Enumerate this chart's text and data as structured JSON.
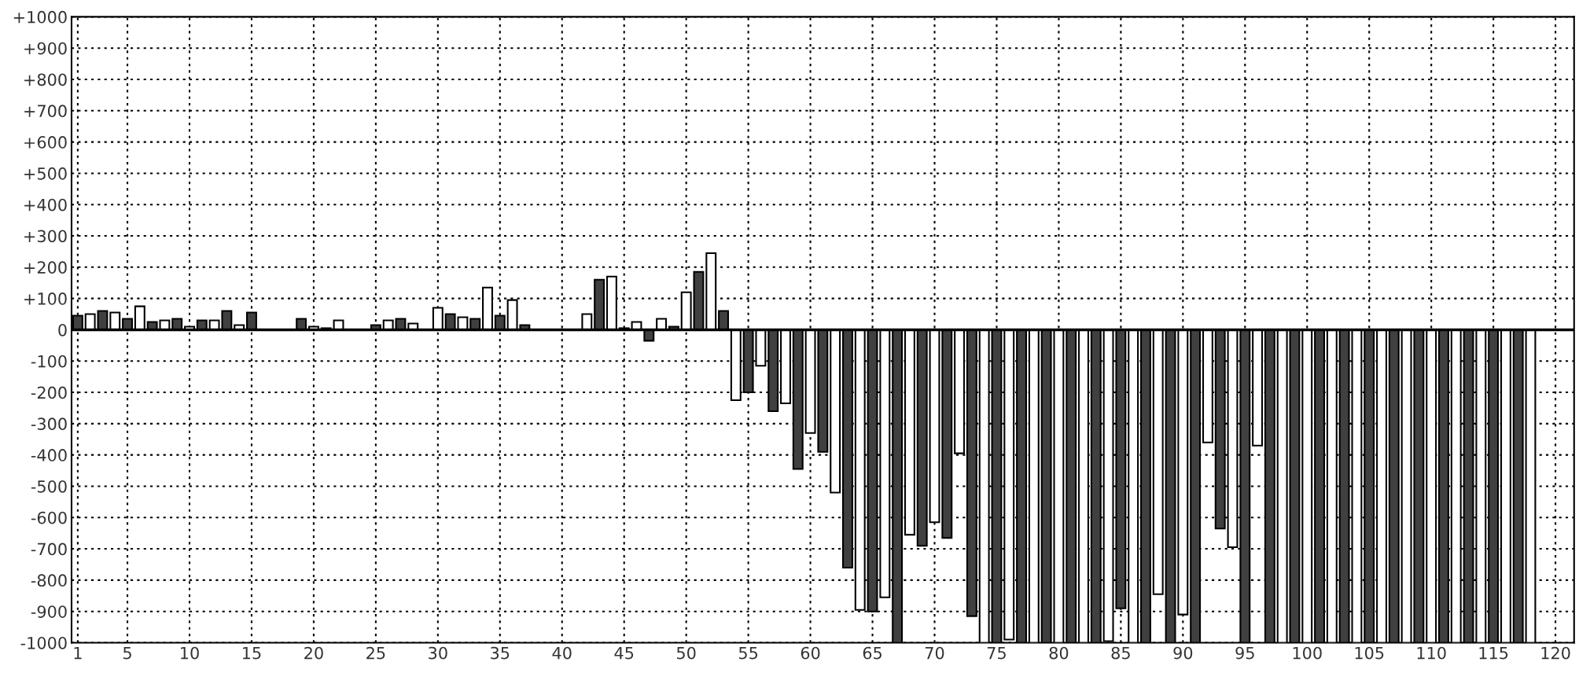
{
  "chart_data": {
    "type": "bar",
    "x": [
      1,
      2,
      3,
      4,
      5,
      6,
      7,
      8,
      9,
      10,
      11,
      12,
      13,
      14,
      15,
      16,
      17,
      18,
      19,
      20,
      21,
      22,
      23,
      24,
      25,
      26,
      27,
      28,
      29,
      30,
      31,
      32,
      33,
      34,
      35,
      36,
      37,
      38,
      39,
      40,
      41,
      42,
      43,
      44,
      45,
      46,
      47,
      48,
      49,
      50,
      51,
      52,
      53,
      54,
      55,
      56,
      57,
      58,
      59,
      60,
      61,
      62,
      63,
      64,
      65,
      66,
      67,
      68,
      69,
      70,
      71,
      72,
      73,
      74,
      75,
      76,
      77,
      78,
      79,
      80,
      81,
      82,
      83,
      84,
      85,
      86,
      87,
      88,
      89,
      90,
      91,
      92,
      93,
      94,
      95,
      96,
      97,
      98,
      99,
      100,
      101,
      102,
      103,
      104,
      105,
      106,
      107,
      108,
      109,
      110,
      111,
      112,
      113,
      114,
      115,
      116,
      117,
      118
    ],
    "values": [
      45,
      50,
      60,
      55,
      35,
      75,
      25,
      30,
      35,
      10,
      30,
      30,
      60,
      15,
      55,
      null,
      null,
      null,
      35,
      10,
      5,
      30,
      null,
      null,
      15,
      30,
      35,
      20,
      null,
      70,
      50,
      40,
      35,
      135,
      45,
      95,
      15,
      null,
      null,
      null,
      null,
      50,
      160,
      170,
      5,
      25,
      -35,
      35,
      10,
      120,
      185,
      245,
      60,
      -225,
      -200,
      -115,
      -260,
      -235,
      -445,
      -330,
      -390,
      -520,
      -760,
      -895,
      -900,
      -855,
      -1000,
      -655,
      -690,
      -615,
      -665,
      -395,
      -915,
      -1000,
      -1000,
      -990,
      -1000,
      -1000,
      -1000,
      -1000,
      -1000,
      -1000,
      -1000,
      -995,
      -890,
      -1000,
      -1000,
      -845,
      -1000,
      -910,
      -1000,
      -360,
      -635,
      -695,
      -1000,
      -370,
      -1000,
      -1000,
      -1000,
      -1000,
      -1000,
      -1000,
      -1000,
      -1000,
      -1000,
      -1000,
      -1000,
      -1000,
      -1000,
      -1000,
      -1000,
      -1000,
      -1000,
      -1000,
      -1000,
      -1000,
      -1000,
      -1000
    ],
    "colors": [
      "#404040",
      "#ffffff",
      "#404040",
      "#ffffff",
      "#404040",
      "#ffffff",
      "#404040",
      "#ffffff",
      "#404040",
      "#ffffff",
      "#404040",
      "#ffffff",
      "#404040",
      "#ffffff",
      "#404040",
      "#ffffff",
      "#404040",
      "#ffffff",
      "#404040",
      "#ffffff",
      "#404040",
      "#ffffff",
      "#404040",
      "#ffffff",
      "#404040",
      "#ffffff",
      "#404040",
      "#ffffff",
      "#404040",
      "#ffffff",
      "#404040",
      "#ffffff",
      "#404040",
      "#ffffff",
      "#404040",
      "#ffffff",
      "#404040",
      "#ffffff",
      "#404040",
      "#ffffff",
      "#404040",
      "#ffffff",
      "#404040",
      "#ffffff",
      "#404040",
      "#ffffff",
      "#404040",
      "#ffffff",
      "#404040",
      "#ffffff",
      "#404040",
      "#ffffff",
      "#404040",
      "#ffffff",
      "#404040",
      "#ffffff",
      "#404040",
      "#ffffff",
      "#404040",
      "#ffffff",
      "#404040",
      "#ffffff",
      "#404040",
      "#ffffff",
      "#404040",
      "#ffffff",
      "#404040",
      "#ffffff",
      "#404040",
      "#ffffff",
      "#404040",
      "#ffffff",
      "#404040",
      "#ffffff",
      "#404040",
      "#ffffff",
      "#404040",
      "#ffffff",
      "#404040",
      "#ffffff",
      "#404040",
      "#ffffff",
      "#404040",
      "#ffffff",
      "#404040",
      "#ffffff",
      "#404040",
      "#ffffff",
      "#404040",
      "#ffffff",
      "#404040",
      "#ffffff",
      "#404040",
      "#ffffff",
      "#404040",
      "#ffffff",
      "#404040",
      "#ffffff",
      "#404040",
      "#ffffff",
      "#404040",
      "#ffffff",
      "#404040",
      "#ffffff",
      "#404040",
      "#ffffff",
      "#404040",
      "#ffffff",
      "#404040",
      "#ffffff",
      "#404040",
      "#ffffff",
      "#404040",
      "#ffffff",
      "#404040",
      "#ffffff",
      "#404040",
      "#ffffff"
    ],
    "xlim": [
      0.5,
      121.5
    ],
    "xticks": [
      1,
      5,
      10,
      15,
      20,
      25,
      30,
      35,
      40,
      45,
      50,
      55,
      60,
      65,
      70,
      75,
      80,
      85,
      90,
      95,
      100,
      105,
      110,
      115,
      120
    ],
    "ylim": [
      -1000,
      1000
    ],
    "yticks": [
      {
        "value": 1000,
        "label": "+1000"
      },
      {
        "value": 900,
        "label": "+900"
      },
      {
        "value": 800,
        "label": "+800"
      },
      {
        "value": 700,
        "label": "+700"
      },
      {
        "value": 600,
        "label": "+600"
      },
      {
        "value": 500,
        "label": "+500"
      },
      {
        "value": 400,
        "label": "+400"
      },
      {
        "value": 300,
        "label": "+300"
      },
      {
        "value": 200,
        "label": "+200"
      },
      {
        "value": 100,
        "label": "+100"
      },
      0,
      {
        "value": -100,
        "label": "-100"
      },
      {
        "value": -200,
        "label": "-200"
      },
      {
        "value": -300,
        "label": "-300"
      },
      {
        "value": -400,
        "label": "-400"
      },
      {
        "value": -500,
        "label": "-500"
      },
      {
        "value": -600,
        "label": "-600"
      },
      {
        "value": -700,
        "label": "-700"
      },
      {
        "value": -800,
        "label": "-800"
      },
      {
        "value": -900,
        "label": "-900"
      },
      {
        "value": -1000,
        "label": "-1000"
      }
    ],
    "grid": true,
    "legend": false
  }
}
